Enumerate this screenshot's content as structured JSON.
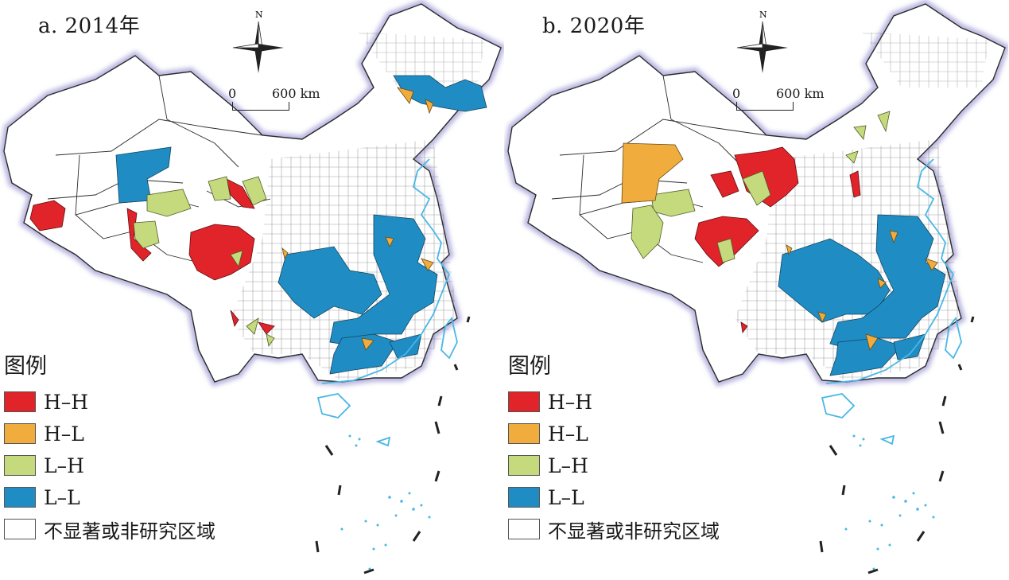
{
  "panels": [
    {
      "id": "a",
      "title": "a. 2014年"
    },
    {
      "id": "b",
      "title": "b. 2020年"
    }
  ],
  "north_label": "N",
  "scale": {
    "start": "0",
    "end": "600 km"
  },
  "legend": {
    "title": "图例",
    "items": [
      {
        "label": "H–H",
        "color": "#e1232a"
      },
      {
        "label": "H–L",
        "color": "#f0ad3e"
      },
      {
        "label": "L–H",
        "color": "#c5da7d"
      },
      {
        "label": "L–L",
        "color": "#1f8dc4"
      },
      {
        "label": "不显著或非研究区域",
        "color": "#ffffff"
      }
    ]
  },
  "colors": {
    "outline": "#2b2b2b",
    "halo": "#b9b6e0",
    "coast": "#49b7e6"
  }
}
